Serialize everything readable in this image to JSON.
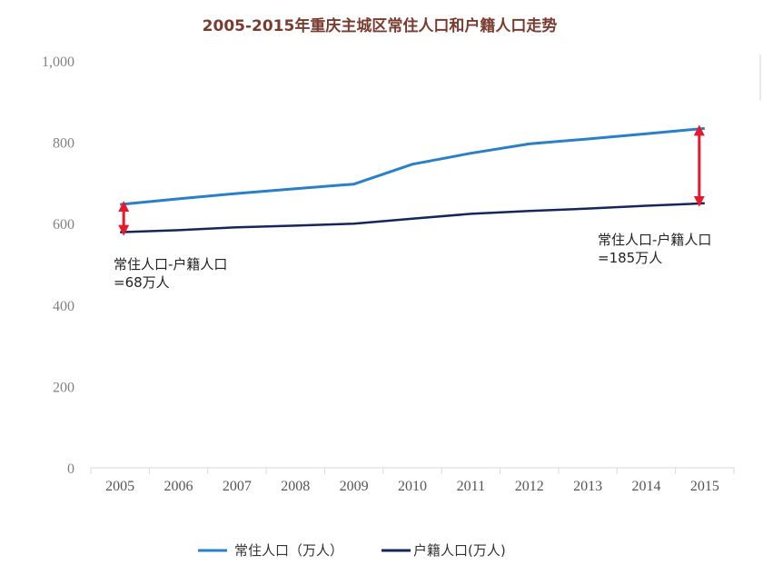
{
  "chart_data": {
    "type": "line",
    "title": "2005-2015年重庆主城区常住人口和户籍人口走势",
    "categories": [
      "2005",
      "2006",
      "2007",
      "2008",
      "2009",
      "2010",
      "2011",
      "2012",
      "2013",
      "2014",
      "2015"
    ],
    "series": [
      {
        "name": "常住人口（万人）",
        "color": "#2a7fc9",
        "values": [
          647,
          661,
          674,
          686,
          697,
          746,
          773,
          796,
          808,
          821,
          834
        ]
      },
      {
        "name": "户籍人口(万人)",
        "color": "#14275c",
        "values": [
          579,
          584,
          591,
          595,
          600,
          612,
          624,
          631,
          637,
          644,
          650
        ]
      }
    ],
    "y_ticks": [
      "0",
      "200",
      "400",
      "600",
      "800",
      "1,000"
    ],
    "ylim": [
      0,
      1000
    ],
    "xlabel": "",
    "ylabel": "",
    "legend_placement": "bottom",
    "gridlines": false,
    "annotations": [
      {
        "text_line1": "常住人口-户籍人口",
        "text_line2": "=68万人",
        "year": "2005",
        "from": 579,
        "to": 647,
        "arrow_color": "#e8192c"
      },
      {
        "text_line1": "常住人口-户籍人口",
        "text_line2": "=185万人",
        "year": "2015",
        "from": 650,
        "to": 834,
        "arrow_color": "#e8192c"
      }
    ]
  }
}
